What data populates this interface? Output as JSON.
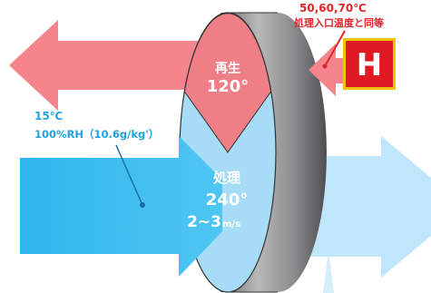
{
  "diagram": {
    "top_note": {
      "temps": "50,60,70℃",
      "text": "処理入口温度と同等"
    },
    "heater_letter": "H",
    "inlet_conditions": {
      "temp": "15℃",
      "humidity": "100%RH（10.6g/kg'）"
    },
    "regen_zone": {
      "title": "再生",
      "angle": "120°"
    },
    "process_zone": {
      "title": "処理",
      "angle": "240°",
      "velocity_value": "2~3",
      "velocity_unit": "m/s"
    },
    "colors": {
      "regen_arrow": "#f4858c",
      "regen_sector": "#ef7f86",
      "process_arrow": "#3bbdef",
      "process_sector": "#a6dcf6",
      "outlet_arrow": "#bfe6fa",
      "heater_box": "#e01a22",
      "heater_edge": "#f5c400",
      "note_text": "#e0252a",
      "label_blue": "#1ea3e0",
      "rotor_rim": "#8f8f90"
    },
    "icons": [
      "heater-box-icon",
      "rotor-wheel-icon"
    ]
  }
}
